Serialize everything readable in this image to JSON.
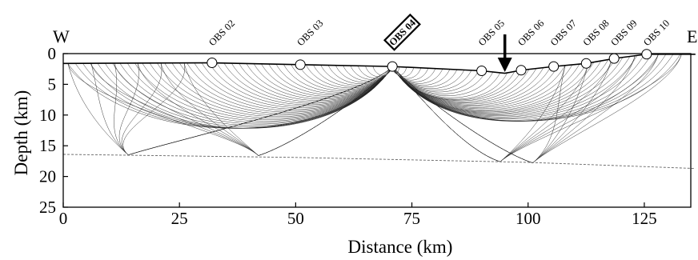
{
  "chart_data": {
    "type": "ray-tracing",
    "xlabel": "Distance (km)",
    "ylabel": "Depth (km)",
    "xlim": [
      0,
      135
    ],
    "ylim": [
      25,
      0
    ],
    "xticks": [
      0,
      25,
      50,
      75,
      100,
      125
    ],
    "yticks": [
      0,
      5,
      10,
      15,
      20,
      25
    ],
    "direction_left": "W",
    "direction_right": "E",
    "highlighted_station": "OBS 04",
    "stations": [
      {
        "name": "OBS 02",
        "x": 32.0,
        "depth": 1.5
      },
      {
        "name": "OBS 03",
        "x": 51.0,
        "depth": 1.8
      },
      {
        "name": "OBS 04",
        "x": 70.8,
        "depth": 2.1
      },
      {
        "name": "OBS 05",
        "x": 90.0,
        "depth": 2.8
      },
      {
        "name": "OBS 06",
        "x": 98.5,
        "depth": 2.7
      },
      {
        "name": "OBS 07",
        "x": 105.5,
        "depth": 2.1
      },
      {
        "name": "OBS 08",
        "x": 112.5,
        "depth": 1.6
      },
      {
        "name": "OBS 09",
        "x": 118.5,
        "depth": 0.8
      },
      {
        "name": "OBS 10",
        "x": 125.5,
        "depth": 0.1
      }
    ],
    "seafloor": [
      [
        0,
        1.6
      ],
      [
        32,
        1.5
      ],
      [
        51,
        1.8
      ],
      [
        70.8,
        2.1
      ],
      [
        90,
        2.8
      ],
      [
        95,
        3.2
      ],
      [
        98.5,
        2.7
      ],
      [
        105.5,
        2.1
      ],
      [
        112.5,
        1.6
      ],
      [
        118.5,
        0.8
      ],
      [
        125.5,
        0.1
      ],
      [
        136,
        0.1
      ]
    ],
    "moho": [
      [
        0,
        16.4
      ],
      [
        50,
        16.9
      ],
      [
        100,
        17.7
      ],
      [
        136,
        18.7
      ]
    ],
    "arrow_x": 95,
    "reflection_points_west": [
      [
        14,
        16.5
      ],
      [
        42,
        16.6
      ]
    ],
    "reflection_points_east": [
      [
        94,
        17.6
      ],
      [
        101,
        17.8
      ]
    ]
  }
}
